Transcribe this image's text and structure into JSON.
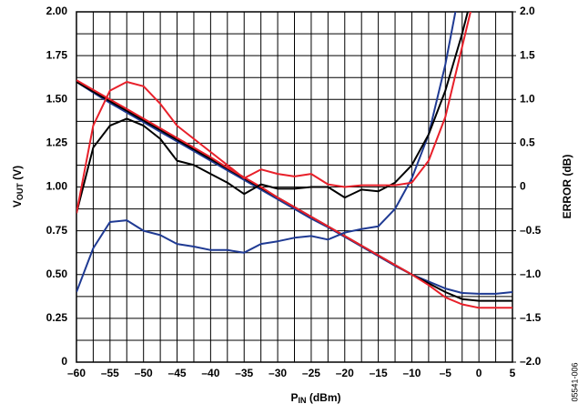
{
  "chart_data": {
    "type": "line",
    "x_label": [
      "P",
      "IN",
      " (dBm)"
    ],
    "y_label": [
      "V",
      "OUT",
      " (V)"
    ],
    "y2_label": "ERROR (dB)",
    "note": "05541-006",
    "grid": true,
    "x": [
      -60,
      -57.5,
      -55,
      -52.5,
      -50,
      -47.5,
      -45,
      -42.5,
      -40,
      -37.5,
      -35,
      -32.5,
      -30,
      -27.5,
      -25,
      -22.5,
      -20,
      -17.5,
      -15,
      -12.5,
      -10,
      -7.5,
      -5,
      -2.5,
      0,
      2.5,
      5
    ],
    "xlim": [
      -60,
      5
    ],
    "xticks": [
      {
        "value": -60,
        "label": "–60"
      },
      {
        "value": -55,
        "label": "–55"
      },
      {
        "value": -50,
        "label": "–50"
      },
      {
        "value": -45,
        "label": "–45"
      },
      {
        "value": -40,
        "label": "–40"
      },
      {
        "value": -35,
        "label": "–35"
      },
      {
        "value": -30,
        "label": "–30"
      },
      {
        "value": -25,
        "label": "–25"
      },
      {
        "value": -20,
        "label": "–20"
      },
      {
        "value": -15,
        "label": "–15"
      },
      {
        "value": -10,
        "label": "–10"
      },
      {
        "value": -5,
        "label": "–5"
      },
      0,
      5
    ],
    "ylim": [
      0,
      2
    ],
    "yticks": [
      0,
      {
        "value": 0.25,
        "label": "0.25"
      },
      {
        "value": 0.5,
        "label": "0.50"
      },
      {
        "value": 0.75,
        "label": "0.75"
      },
      {
        "value": 1,
        "label": "1.00"
      },
      {
        "value": 1.25,
        "label": "1.25"
      },
      {
        "value": 1.5,
        "label": "1.50"
      },
      {
        "value": 1.75,
        "label": "1.75"
      },
      {
        "value": 2,
        "label": "2.00"
      }
    ],
    "y2lim": [
      -2,
      2
    ],
    "y2ticks": [
      {
        "value": -2,
        "label": "–2.0"
      },
      {
        "value": -1.5,
        "label": "–1.5"
      },
      {
        "value": -1,
        "label": "–1.0"
      },
      {
        "value": -0.5,
        "label": "–0.5"
      },
      0,
      0.5,
      {
        "value": 1,
        "label": "1.0"
      },
      1.5,
      {
        "value": 2,
        "label": "2.0"
      }
    ],
    "series": [
      {
        "color": "#1f3a93",
        "axis": "y",
        "values": [
          1.6,
          1.54,
          1.48,
          1.425,
          1.37,
          1.315,
          1.26,
          1.205,
          1.15,
          1.095,
          1.04,
          0.985,
          0.93,
          0.875,
          0.82,
          0.77,
          0.715,
          0.66,
          0.605,
          0.55,
          0.5,
          0.46,
          0.42,
          0.395,
          0.39,
          0.39,
          0.4
        ]
      },
      {
        "color": "#000000",
        "axis": "y",
        "values": [
          1.6,
          1.545,
          1.49,
          1.435,
          1.38,
          1.325,
          1.27,
          1.215,
          1.16,
          1.105,
          1.05,
          0.995,
          0.94,
          0.885,
          0.83,
          0.775,
          0.72,
          0.665,
          0.61,
          0.555,
          0.5,
          0.45,
          0.4,
          0.36,
          0.35,
          0.35,
          0.35
        ]
      },
      {
        "color": "#e8202a",
        "axis": "y",
        "values": [
          1.61,
          1.555,
          1.5,
          1.445,
          1.39,
          1.335,
          1.28,
          1.225,
          1.17,
          1.11,
          1.055,
          1.0,
          0.94,
          0.885,
          0.83,
          0.775,
          0.72,
          0.665,
          0.61,
          0.555,
          0.5,
          0.44,
          0.37,
          0.33,
          0.31,
          0.31,
          0.31
        ]
      },
      {
        "color": "#1f3a93",
        "axis": "y2",
        "values": [
          -1.2,
          -0.7,
          -0.4,
          -0.38,
          -0.5,
          -0.55,
          -0.65,
          -0.68,
          -0.72,
          -0.72,
          -0.75,
          -0.65,
          -0.62,
          -0.58,
          -0.56,
          -0.6,
          -0.52,
          -0.48,
          -0.45,
          -0.25,
          0.1,
          0.6,
          1.4,
          2.4,
          null,
          null,
          null
        ]
      },
      {
        "color": "#000000",
        "axis": "y2",
        "values": [
          -0.3,
          0.45,
          0.7,
          0.78,
          0.7,
          0.55,
          0.3,
          0.25,
          0.15,
          0.05,
          -0.08,
          0.03,
          -0.02,
          -0.02,
          0.0,
          0.0,
          -0.12,
          -0.03,
          -0.05,
          0.05,
          0.25,
          0.6,
          1.1,
          1.75,
          2.5,
          null,
          null
        ]
      },
      {
        "color": "#e8202a",
        "axis": "y2",
        "values": [
          -0.3,
          0.7,
          1.1,
          1.2,
          1.15,
          0.95,
          0.7,
          0.55,
          0.4,
          0.25,
          0.1,
          0.2,
          0.15,
          0.12,
          0.15,
          0.03,
          0.0,
          0.02,
          0.02,
          0.02,
          0.05,
          0.3,
          0.8,
          1.6,
          2.4,
          null,
          null
        ]
      }
    ]
  }
}
